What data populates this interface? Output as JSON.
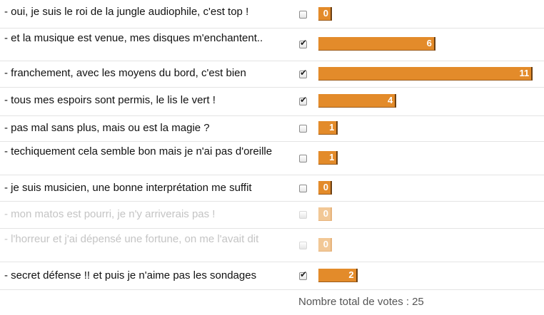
{
  "poll": {
    "options": [
      {
        "label": "- oui, je suis le roi de la jungle audiophile, c'est top !",
        "checked": false,
        "votes": 0,
        "dimmed": false
      },
      {
        "label": "- et la musique est venue, mes disques m'enchantent..",
        "checked": true,
        "votes": 6,
        "dimmed": false
      },
      {
        "label": "- franchement, avec les moyens du bord, c'est bien",
        "checked": true,
        "votes": 11,
        "dimmed": false
      },
      {
        "label": "- tous mes espoirs sont permis, le lis le vert !",
        "checked": true,
        "votes": 4,
        "dimmed": false
      },
      {
        "label": "- pas mal sans plus, mais ou est la magie ?",
        "checked": false,
        "votes": 1,
        "dimmed": false
      },
      {
        "label": "- techiquement cela semble bon mais je n'ai pas d'oreille",
        "checked": false,
        "votes": 1,
        "dimmed": false
      },
      {
        "label": "- je suis musicien, une bonne interprétation me suffit",
        "checked": false,
        "votes": 0,
        "dimmed": false
      },
      {
        "label": "- mon matos est pourri, je n'y arriverais pas !",
        "checked": false,
        "votes": 0,
        "dimmed": true
      },
      {
        "label": "- l'horreur et j'ai dépensé une fortune, on me l'avait dit",
        "checked": false,
        "votes": 0,
        "dimmed": true
      },
      {
        "label": "- secret défense !! et puis je n'aime pas les sondages",
        "checked": true,
        "votes": 2,
        "dimmed": false
      }
    ],
    "total_label": "Nombre total de votes :",
    "total_votes": "25"
  },
  "colors": {
    "bar": "#e38b2a",
    "bar_dim": "#f2c896"
  }
}
